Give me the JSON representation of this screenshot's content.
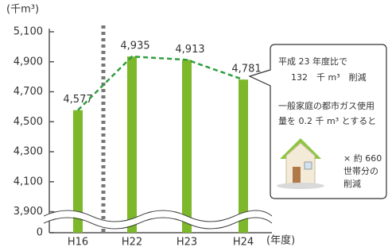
{
  "chart_data": {
    "type": "bar",
    "unit_label": "(千m³)",
    "x_label": "(年度)",
    "categories": [
      "H16",
      "H22",
      "H23",
      "H24"
    ],
    "values": [
      4577,
      4935,
      4913,
      4781
    ],
    "value_labels": [
      "4,577",
      "4,935",
      "4,913",
      "4,781"
    ],
    "color": "#7cb82a",
    "trend_color": "#2e9e3e",
    "axis_break": true,
    "ylim": [
      3760,
      5100
    ],
    "yticks": [
      0,
      {
        "value": 3900,
        "label": "3,900"
      },
      {
        "value": 4100,
        "label": "4,100"
      },
      {
        "value": 4300,
        "label": "4,300"
      },
      {
        "value": 4500,
        "label": "4,500"
      },
      {
        "value": 4700,
        "label": "4,700"
      },
      {
        "value": 4900,
        "label": "4,900"
      },
      {
        "value": 5100,
        "label": "5,100"
      }
    ],
    "annotations": [
      "平成 23 年度比で",
      "132　千 m³　削減",
      "一般家庭の都市ガス使用",
      "量を 0.2 千 m³ とすると",
      "× 約 660",
      "世帯分の",
      "削減"
    ]
  }
}
